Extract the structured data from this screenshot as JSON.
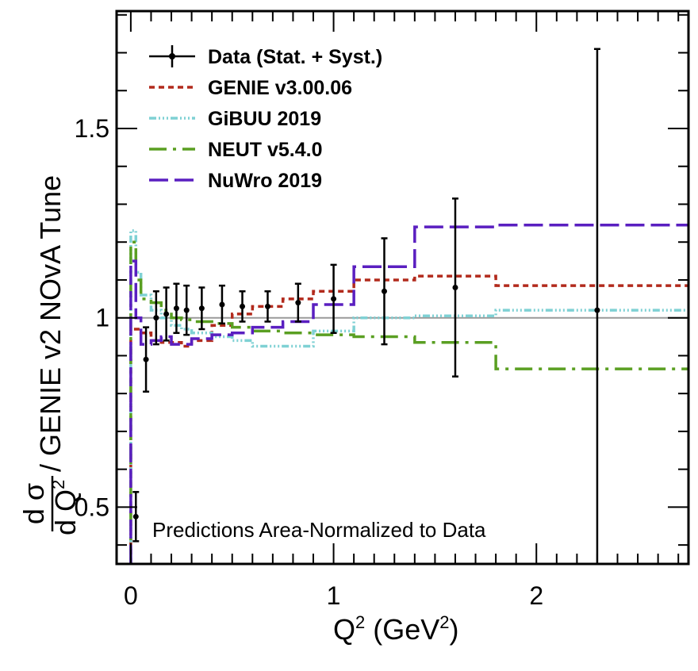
{
  "chart_data": {
    "type": "line",
    "xlabel_main": "Q",
    "xlabel_sup": "2",
    "xlabel_unit_open": " (GeV",
    "xlabel_unit_sup": "2",
    "xlabel_unit_close": ")",
    "ylabel": {
      "frac_num": "d σ",
      "frac_den": "d Q",
      "frac_den_sup": "2",
      "rest": " / GENIE v2 NOvA Tune"
    },
    "xlim": [
      -0.07,
      2.75
    ],
    "ylim": [
      0.35,
      1.81
    ],
    "x_ticks": [
      0,
      1,
      2
    ],
    "x_tick_labels": [
      "0",
      "1",
      "2"
    ],
    "y_ticks": [
      0.5,
      1,
      1.5
    ],
    "y_tick_labels": [
      "0.5",
      "1",
      "1.5"
    ],
    "reference_line": 1.0,
    "annotation": "Predictions Area-Normalized to Data",
    "legend_position": "top-left",
    "data": {
      "name": "Data (Stat. + Syst.)",
      "color": "#000000",
      "points": [
        {
          "x": 0.025,
          "y": 0.475,
          "err": 0.065
        },
        {
          "x": 0.075,
          "y": 0.89,
          "err": 0.085
        },
        {
          "x": 0.125,
          "y": 1.0,
          "err": 0.07
        },
        {
          "x": 0.175,
          "y": 1.01,
          "err": 0.07
        },
        {
          "x": 0.225,
          "y": 1.025,
          "err": 0.065
        },
        {
          "x": 0.275,
          "y": 1.02,
          "err": 0.065
        },
        {
          "x": 0.35,
          "y": 1.025,
          "err": 0.055
        },
        {
          "x": 0.45,
          "y": 1.035,
          "err": 0.05
        },
        {
          "x": 0.55,
          "y": 1.03,
          "err": 0.04
        },
        {
          "x": 0.675,
          "y": 1.03,
          "err": 0.04
        },
        {
          "x": 0.825,
          "y": 1.04,
          "err": 0.05
        },
        {
          "x": 1.0,
          "y": 1.05,
          "err": 0.09
        },
        {
          "x": 1.25,
          "y": 1.07,
          "err": 0.14
        },
        {
          "x": 1.6,
          "y": 1.08,
          "err": 0.235
        },
        {
          "x": 2.3,
          "y": 1.02,
          "err": 0.69
        }
      ]
    },
    "series": [
      {
        "name": "GENIE v3.00.06",
        "color": "#b22a1c",
        "dash": "7,5",
        "edges": [
          0,
          0.05,
          0.1,
          0.15,
          0.2,
          0.25,
          0.3,
          0.4,
          0.5,
          0.6,
          0.75,
          0.9,
          1.1,
          1.4,
          1.8,
          2.8
        ],
        "values": [
          0.97,
          0.96,
          0.94,
          0.935,
          0.935,
          0.925,
          0.94,
          0.98,
          1.01,
          1.03,
          1.05,
          1.07,
          1.1,
          1.11,
          1.085
        ]
      },
      {
        "name": "GiBUU 2019",
        "color": "#7fd1d4",
        "dash": "9,3,2,3,2,3,2,3",
        "edges": [
          0,
          0.025,
          0.05,
          0.1,
          0.15,
          0.2,
          0.25,
          0.3,
          0.4,
          0.5,
          0.6,
          0.75,
          0.9,
          1.1,
          1.4,
          1.8,
          2.8
        ],
        "values": [
          1.23,
          1.12,
          1.06,
          1.02,
          1.0,
          0.98,
          0.97,
          0.96,
          0.95,
          0.94,
          0.925,
          0.925,
          0.965,
          1.0,
          1.005,
          1.02
        ]
      },
      {
        "name": "NEUT v5.4.0",
        "color": "#5a9f22",
        "dash": "22,8,4,8",
        "edges": [
          0,
          0.025,
          0.05,
          0.1,
          0.15,
          0.2,
          0.25,
          0.3,
          0.4,
          0.5,
          0.6,
          0.75,
          0.9,
          1.1,
          1.4,
          1.8,
          2.8
        ],
        "values": [
          1.2,
          1.1,
          1.05,
          1.04,
          1.02,
          1.0,
          0.995,
          0.99,
          0.985,
          0.975,
          0.965,
          0.96,
          0.955,
          0.95,
          0.935,
          0.865
        ]
      },
      {
        "name": "NuWro 2019",
        "color": "#5a1fc0",
        "dash": "24,8",
        "edges": [
          0,
          0.025,
          0.05,
          0.1,
          0.15,
          0.2,
          0.25,
          0.3,
          0.4,
          0.5,
          0.6,
          0.75,
          0.9,
          1.1,
          1.4,
          1.8,
          2.8
        ],
        "values": [
          1.15,
          1.0,
          0.93,
          0.94,
          0.95,
          0.93,
          0.93,
          0.945,
          0.955,
          0.96,
          0.975,
          0.99,
          1.035,
          1.135,
          1.24,
          1.245
        ]
      }
    ]
  }
}
